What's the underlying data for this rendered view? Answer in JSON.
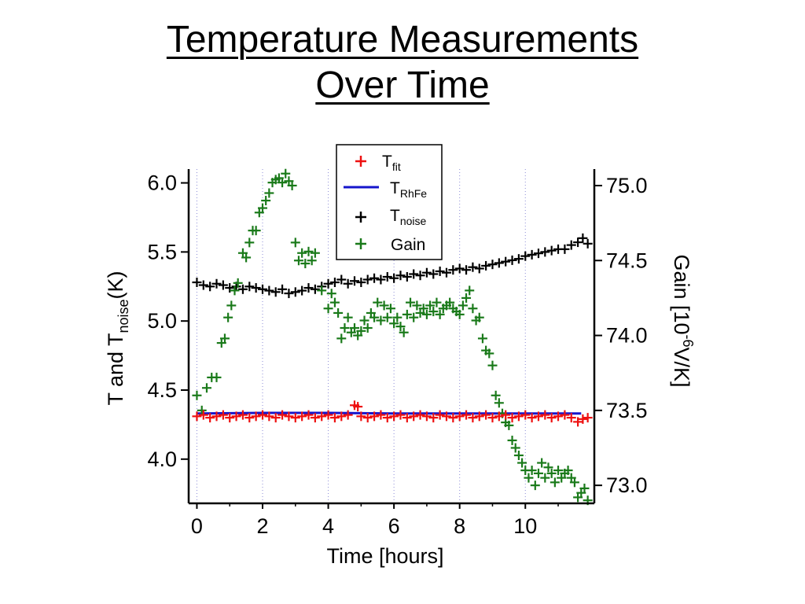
{
  "title": {
    "line1": "Temperature Measurements",
    "line2": "Over Time"
  },
  "chart_data": {
    "type": "scatter",
    "xlabel": "Time [hours]",
    "xlim": [
      -0.25,
      12.1
    ],
    "xticks": [
      0,
      2,
      4,
      6,
      8,
      10
    ],
    "left_axis": {
      "label_main": "T and T",
      "label_sub": "noise",
      "label_tail": "(K)",
      "ylim": [
        3.68,
        6.1
      ],
      "ticks": [
        4.0,
        4.5,
        5.0,
        5.5,
        6.0
      ],
      "tick_labels": [
        "4.0",
        "4.5",
        "5.0",
        "5.5",
        "6.0"
      ]
    },
    "right_axis": {
      "label_main": "Gain [10",
      "label_sup": "-6",
      "label_tail": "V/K]",
      "ylim": [
        72.88,
        75.11
      ],
      "ticks": [
        73.0,
        73.5,
        74.0,
        74.5,
        75.0
      ],
      "tick_labels": [
        "73.0",
        "73.5",
        "74.0",
        "74.5",
        "75.0"
      ]
    },
    "grid": "vertical dotted at x ticks",
    "legend": {
      "placement": "top-center",
      "entries": [
        {
          "main": "T",
          "sub": "fit",
          "marker": "plus",
          "color": "#ee1111"
        },
        {
          "main": "T",
          "sub": "RhFe",
          "marker": "line",
          "color": "#1515cc"
        },
        {
          "main": "T",
          "sub": "noise",
          "marker": "plus",
          "color": "#000000"
        },
        {
          "main": "Gain",
          "sub": "",
          "marker": "plus",
          "color": "#1a7a1a"
        }
      ]
    },
    "series": [
      {
        "key": "tfit",
        "axis": "left",
        "marker": "plus",
        "color": "#ee1111",
        "points": [
          [
            0.0,
            4.31
          ],
          [
            0.2,
            4.32
          ],
          [
            0.4,
            4.3
          ],
          [
            0.6,
            4.31
          ],
          [
            0.8,
            4.32
          ],
          [
            1.0,
            4.3
          ],
          [
            1.2,
            4.31
          ],
          [
            1.4,
            4.32
          ],
          [
            1.6,
            4.3
          ],
          [
            1.8,
            4.31
          ],
          [
            2.0,
            4.32
          ],
          [
            2.2,
            4.31
          ],
          [
            2.4,
            4.3
          ],
          [
            2.6,
            4.32
          ],
          [
            2.8,
            4.31
          ],
          [
            3.0,
            4.3
          ],
          [
            3.2,
            4.31
          ],
          [
            3.4,
            4.32
          ],
          [
            3.6,
            4.3
          ],
          [
            3.8,
            4.31
          ],
          [
            4.0,
            4.32
          ],
          [
            4.2,
            4.3
          ],
          [
            4.4,
            4.31
          ],
          [
            4.6,
            4.32
          ],
          [
            4.8,
            4.39
          ],
          [
            4.9,
            4.38
          ],
          [
            5.0,
            4.31
          ],
          [
            5.2,
            4.3
          ],
          [
            5.4,
            4.31
          ],
          [
            5.6,
            4.32
          ],
          [
            5.8,
            4.3
          ],
          [
            6.0,
            4.31
          ],
          [
            6.2,
            4.32
          ],
          [
            6.4,
            4.3
          ],
          [
            6.6,
            4.31
          ],
          [
            6.8,
            4.32
          ],
          [
            7.0,
            4.31
          ],
          [
            7.2,
            4.3
          ],
          [
            7.4,
            4.32
          ],
          [
            7.6,
            4.31
          ],
          [
            7.8,
            4.3
          ],
          [
            8.0,
            4.31
          ],
          [
            8.2,
            4.32
          ],
          [
            8.4,
            4.3
          ],
          [
            8.6,
            4.31
          ],
          [
            8.8,
            4.32
          ],
          [
            9.0,
            4.3
          ],
          [
            9.2,
            4.31
          ],
          [
            9.4,
            4.32
          ],
          [
            9.6,
            4.3
          ],
          [
            9.8,
            4.31
          ],
          [
            10.0,
            4.32
          ],
          [
            10.2,
            4.3
          ],
          [
            10.4,
            4.31
          ],
          [
            10.6,
            4.32
          ],
          [
            10.8,
            4.3
          ],
          [
            11.0,
            4.31
          ],
          [
            11.2,
            4.32
          ],
          [
            11.4,
            4.3
          ],
          [
            11.6,
            4.27
          ],
          [
            11.75,
            4.29
          ],
          [
            11.9,
            4.3
          ]
        ]
      },
      {
        "key": "trhfe",
        "axis": "left",
        "marker": "line",
        "color": "#1515cc",
        "points": [
          [
            0.0,
            4.33
          ],
          [
            2.0,
            4.335
          ],
          [
            4.0,
            4.335
          ],
          [
            6.0,
            4.33
          ],
          [
            8.0,
            4.33
          ],
          [
            10.0,
            4.33
          ],
          [
            11.7,
            4.33
          ]
        ]
      },
      {
        "key": "tnoise",
        "axis": "left",
        "marker": "plus",
        "color": "#000000",
        "points": [
          [
            0.0,
            5.28
          ],
          [
            0.2,
            5.26
          ],
          [
            0.4,
            5.25
          ],
          [
            0.6,
            5.27
          ],
          [
            0.8,
            5.26
          ],
          [
            1.0,
            5.24
          ],
          [
            1.2,
            5.25
          ],
          [
            1.4,
            5.23
          ],
          [
            1.6,
            5.25
          ],
          [
            1.8,
            5.24
          ],
          [
            2.0,
            5.23
          ],
          [
            2.2,
            5.22
          ],
          [
            2.4,
            5.21
          ],
          [
            2.6,
            5.23
          ],
          [
            2.8,
            5.2
          ],
          [
            3.0,
            5.21
          ],
          [
            3.2,
            5.22
          ],
          [
            3.4,
            5.24
          ],
          [
            3.6,
            5.23
          ],
          [
            3.8,
            5.25
          ],
          [
            4.0,
            5.27
          ],
          [
            4.2,
            5.28
          ],
          [
            4.4,
            5.3
          ],
          [
            4.6,
            5.27
          ],
          [
            4.8,
            5.29
          ],
          [
            5.0,
            5.28
          ],
          [
            5.2,
            5.3
          ],
          [
            5.4,
            5.31
          ],
          [
            5.6,
            5.3
          ],
          [
            5.8,
            5.32
          ],
          [
            6.0,
            5.31
          ],
          [
            6.2,
            5.33
          ],
          [
            6.4,
            5.32
          ],
          [
            6.6,
            5.34
          ],
          [
            6.8,
            5.33
          ],
          [
            7.0,
            5.35
          ],
          [
            7.2,
            5.34
          ],
          [
            7.4,
            5.36
          ],
          [
            7.6,
            5.35
          ],
          [
            7.8,
            5.37
          ],
          [
            8.0,
            5.38
          ],
          [
            8.2,
            5.37
          ],
          [
            8.4,
            5.39
          ],
          [
            8.6,
            5.38
          ],
          [
            8.8,
            5.4
          ],
          [
            9.0,
            5.41
          ],
          [
            9.2,
            5.42
          ],
          [
            9.4,
            5.43
          ],
          [
            9.6,
            5.44
          ],
          [
            9.8,
            5.45
          ],
          [
            10.0,
            5.47
          ],
          [
            10.2,
            5.48
          ],
          [
            10.4,
            5.49
          ],
          [
            10.6,
            5.5
          ],
          [
            10.8,
            5.51
          ],
          [
            11.0,
            5.52
          ],
          [
            11.2,
            5.52
          ],
          [
            11.4,
            5.55
          ],
          [
            11.6,
            5.57
          ],
          [
            11.75,
            5.6
          ],
          [
            11.9,
            5.56
          ]
        ]
      },
      {
        "key": "gain",
        "axis": "right",
        "marker": "plus",
        "color": "#1a7a1a",
        "points": [
          [
            0.0,
            73.6
          ],
          [
            0.15,
            73.5
          ],
          [
            0.3,
            73.65
          ],
          [
            0.45,
            73.72
          ],
          [
            0.6,
            73.72
          ],
          [
            0.75,
            73.95
          ],
          [
            0.85,
            73.98
          ],
          [
            0.95,
            74.12
          ],
          [
            1.05,
            74.2
          ],
          [
            1.15,
            74.3
          ],
          [
            1.25,
            74.35
          ],
          [
            1.4,
            74.55
          ],
          [
            1.5,
            74.52
          ],
          [
            1.6,
            74.62
          ],
          [
            1.7,
            74.7
          ],
          [
            1.8,
            74.7
          ],
          [
            1.9,
            74.82
          ],
          [
            2.0,
            74.85
          ],
          [
            2.1,
            74.9
          ],
          [
            2.2,
            74.95
          ],
          [
            2.3,
            75.02
          ],
          [
            2.4,
            75.04
          ],
          [
            2.5,
            75.05
          ],
          [
            2.6,
            75.02
          ],
          [
            2.7,
            75.08
          ],
          [
            2.8,
            75.03
          ],
          [
            2.9,
            75.0
          ],
          [
            3.0,
            74.62
          ],
          [
            3.1,
            74.5
          ],
          [
            3.2,
            74.55
          ],
          [
            3.3,
            74.48
          ],
          [
            3.4,
            74.56
          ],
          [
            3.5,
            74.5
          ],
          [
            3.6,
            74.55
          ],
          [
            3.8,
            74.3
          ],
          [
            4.0,
            74.18
          ],
          [
            4.1,
            74.28
          ],
          [
            4.2,
            74.22
          ],
          [
            4.3,
            74.15
          ],
          [
            4.4,
            73.98
          ],
          [
            4.5,
            74.05
          ],
          [
            4.6,
            74.12
          ],
          [
            4.7,
            74.02
          ],
          [
            4.8,
            74.05
          ],
          [
            4.9,
            74.0
          ],
          [
            5.0,
            74.03
          ],
          [
            5.1,
            74.1
          ],
          [
            5.2,
            74.05
          ],
          [
            5.3,
            74.15
          ],
          [
            5.4,
            74.12
          ],
          [
            5.5,
            74.22
          ],
          [
            5.6,
            74.1
          ],
          [
            5.7,
            74.2
          ],
          [
            5.8,
            74.12
          ],
          [
            5.9,
            74.18
          ],
          [
            6.0,
            74.08
          ],
          [
            6.1,
            74.12
          ],
          [
            6.2,
            74.06
          ],
          [
            6.3,
            74.02
          ],
          [
            6.4,
            74.14
          ],
          [
            6.5,
            74.22
          ],
          [
            6.6,
            74.12
          ],
          [
            6.7,
            74.2
          ],
          [
            6.8,
            74.15
          ],
          [
            6.9,
            74.18
          ],
          [
            7.0,
            74.14
          ],
          [
            7.1,
            74.2
          ],
          [
            7.2,
            74.16
          ],
          [
            7.3,
            74.22
          ],
          [
            7.4,
            74.14
          ],
          [
            7.5,
            74.18
          ],
          [
            7.6,
            74.2
          ],
          [
            7.7,
            74.22
          ],
          [
            7.8,
            74.18
          ],
          [
            7.9,
            74.16
          ],
          [
            8.0,
            74.14
          ],
          [
            8.1,
            74.2
          ],
          [
            8.2,
            74.25
          ],
          [
            8.3,
            74.3
          ],
          [
            8.4,
            74.18
          ],
          [
            8.5,
            74.1
          ],
          [
            8.6,
            74.12
          ],
          [
            8.7,
            73.98
          ],
          [
            8.8,
            73.9
          ],
          [
            8.9,
            73.88
          ],
          [
            9.0,
            73.8
          ],
          [
            9.1,
            73.6
          ],
          [
            9.2,
            73.55
          ],
          [
            9.3,
            73.48
          ],
          [
            9.4,
            73.42
          ],
          [
            9.5,
            73.4
          ],
          [
            9.6,
            73.3
          ],
          [
            9.7,
            73.25
          ],
          [
            9.8,
            73.2
          ],
          [
            9.9,
            73.15
          ],
          [
            10.0,
            73.1
          ],
          [
            10.1,
            73.05
          ],
          [
            10.2,
            73.1
          ],
          [
            10.3,
            73.0
          ],
          [
            10.4,
            73.08
          ],
          [
            10.5,
            73.15
          ],
          [
            10.6,
            73.05
          ],
          [
            10.7,
            73.12
          ],
          [
            10.8,
            73.08
          ],
          [
            10.9,
            73.02
          ],
          [
            11.0,
            73.1
          ],
          [
            11.1,
            73.05
          ],
          [
            11.2,
            73.08
          ],
          [
            11.3,
            73.1
          ],
          [
            11.4,
            73.05
          ],
          [
            11.5,
            73.02
          ],
          [
            11.6,
            72.92
          ],
          [
            11.7,
            72.95
          ],
          [
            11.8,
            72.98
          ],
          [
            11.9,
            72.9
          ]
        ]
      }
    ]
  }
}
